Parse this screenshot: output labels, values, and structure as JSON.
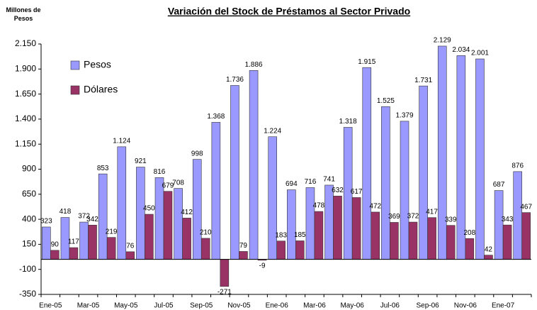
{
  "chart_data": {
    "type": "bar",
    "title": "Variación del Stock de Préstamos al Sector Privado",
    "y_label": "Millones de Pesos",
    "categories": [
      "Ene-05",
      null,
      "Mar-05",
      null,
      "May-05",
      null,
      "Jul-05",
      null,
      "Sep-05",
      null,
      "Nov-05",
      null,
      "Ene-06",
      null,
      "Mar-06",
      null,
      "May-06",
      null,
      "Jul-06",
      null,
      "Sep-06",
      null,
      "Nov-06",
      null,
      "Ene-07",
      null
    ],
    "series": [
      {
        "name": "Pesos",
        "color": "#9999ff",
        "values": [
          323,
          418,
          372,
          853,
          1124,
          921,
          816,
          708,
          998,
          1368,
          1736,
          1886,
          1224,
          694,
          716,
          741,
          1318,
          1915,
          1525,
          1379,
          1731,
          2129,
          2034,
          2001,
          687,
          876
        ],
        "value_labels": [
          "323",
          "418",
          "372",
          "853",
          "1.124",
          "921",
          "816",
          "708",
          "998",
          "1.368",
          "1.736",
          "1.886",
          "1.224",
          "694",
          "716",
          "741",
          "1.318",
          "1.915",
          "1.525",
          "1.379",
          "1.731",
          "2.129",
          "2.034",
          "2.001",
          "687",
          "876"
        ]
      },
      {
        "name": "Dólares",
        "color": "#993366",
        "values": [
          90,
          117,
          342,
          219,
          76,
          450,
          679,
          412,
          210,
          -271,
          79,
          -9,
          183,
          185,
          478,
          632,
          617,
          472,
          369,
          372,
          417,
          339,
          208,
          42,
          343,
          467
        ]
      }
    ],
    "ylim": [
      -350,
      2150
    ],
    "yticks": [
      -350,
      -100,
      150,
      400,
      650,
      900,
      {
        "value": 1150,
        "label": "1.150"
      },
      {
        "value": 1400,
        "label": "1.400"
      },
      {
        "value": 1650,
        "label": "1.650"
      },
      {
        "value": 1900,
        "label": "1.900"
      },
      {
        "value": 2150,
        "label": "2.150"
      }
    ],
    "legend": "top-left",
    "grid": false
  }
}
